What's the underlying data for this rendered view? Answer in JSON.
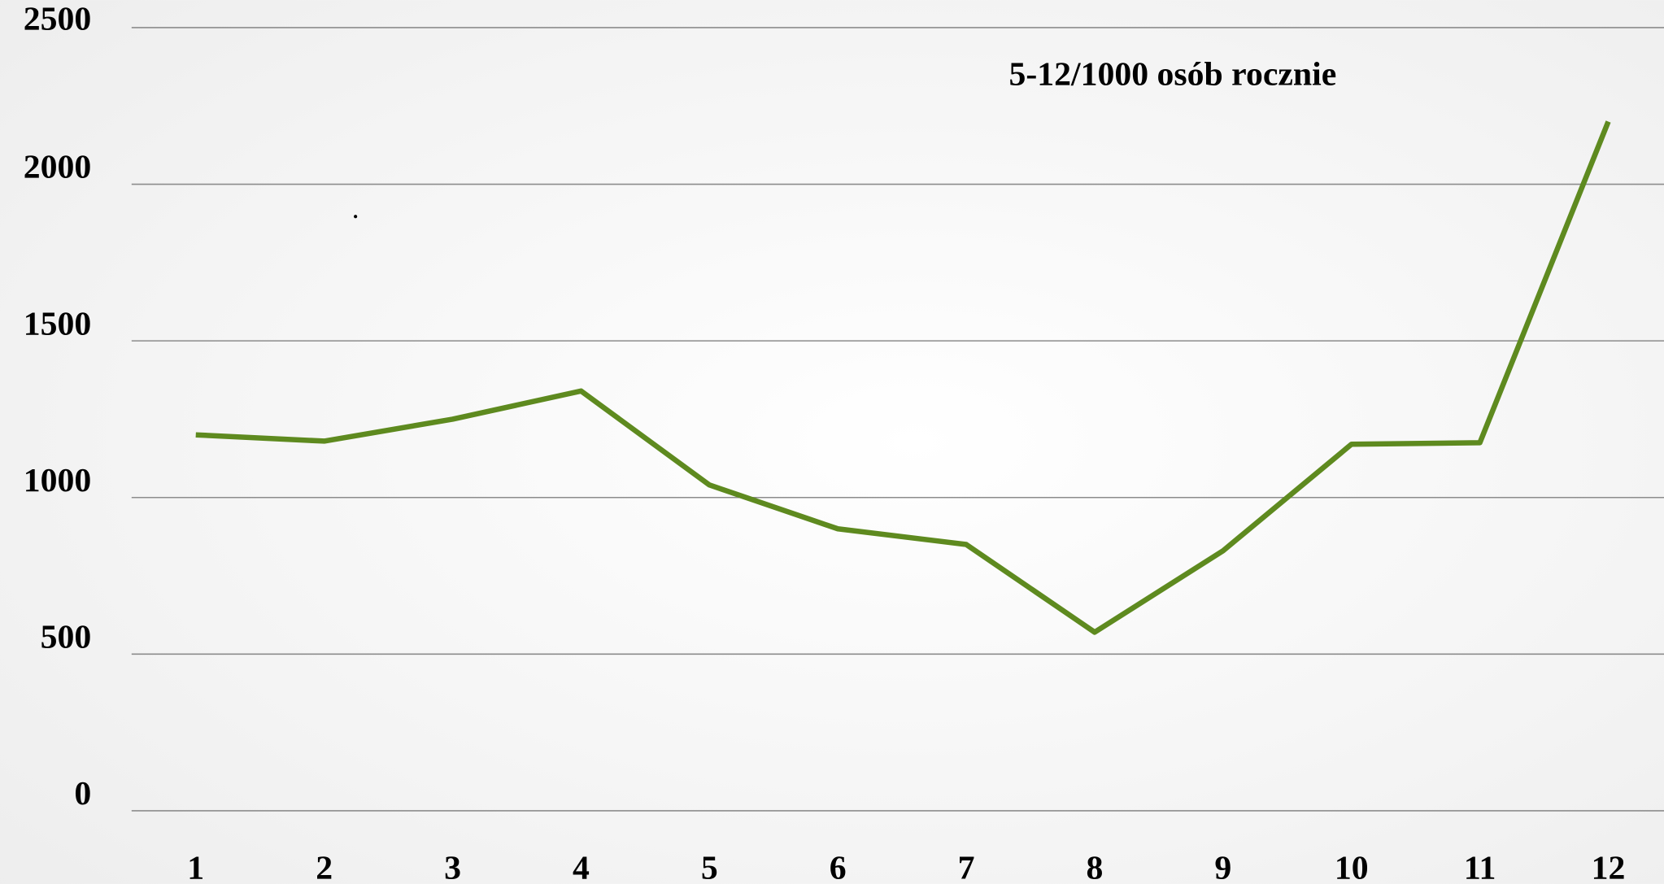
{
  "chart_data": {
    "type": "line",
    "annotation": "5-12/1000 osób rocznie",
    "categories": [
      "1",
      "2",
      "3",
      "4",
      "5",
      "6",
      "7",
      "8",
      "9",
      "10",
      "11",
      "12"
    ],
    "series": [
      {
        "name": null,
        "color": "#5e8a1f",
        "values": [
          1200,
          1180,
          1250,
          1340,
          1040,
          900,
          850,
          570,
          830,
          1170,
          1175,
          2200
        ]
      }
    ],
    "ylim": [
      0,
      2500
    ],
    "yticks": [
      0,
      500,
      1000,
      1500,
      2000,
      2500
    ],
    "grid": true
  }
}
